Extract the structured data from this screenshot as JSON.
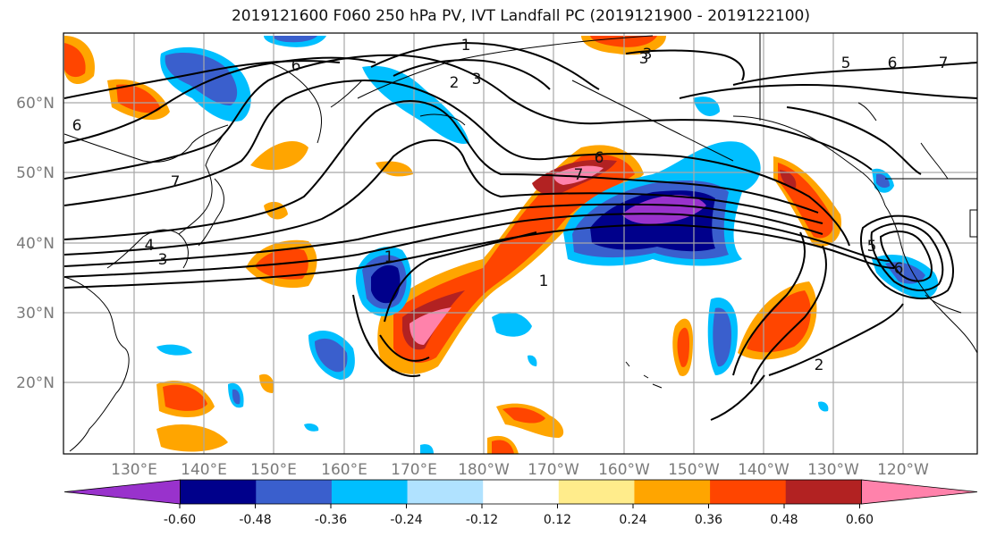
{
  "title": "2019121600 F060 250 hPa PV, IVT Landfall PC (2019121900 - 2019122100)",
  "lat_labels": [
    "60°N",
    "50°N",
    "40°N",
    "30°N",
    "20°N"
  ],
  "lon_labels": [
    "130°E",
    "140°E",
    "150°E",
    "160°E",
    "170°E",
    "180°W",
    "170°W",
    "160°W",
    "150°W",
    "140°W",
    "130°W",
    "120°W"
  ],
  "contour_labels": [
    "6",
    "7",
    "4",
    "3",
    "6",
    "1",
    "2",
    "3",
    "3",
    "5",
    "6",
    "7",
    "6",
    "7",
    "1",
    "5",
    "6",
    "1",
    "2",
    "3"
  ],
  "colorbar": {
    "colors": [
      "#9932cc",
      "#00008b",
      "#3a5fcd",
      "#00bfff",
      "#b0e2ff",
      "#ffffff",
      "#ffec8b",
      "#ffa500",
      "#ff4500",
      "#b22222",
      "#ff82ab"
    ],
    "ticks": [
      "-0.60",
      "-0.48",
      "-0.36",
      "-0.24",
      "-0.12",
      "0.12",
      "0.24",
      "0.36",
      "0.48",
      "0.60"
    ]
  }
}
